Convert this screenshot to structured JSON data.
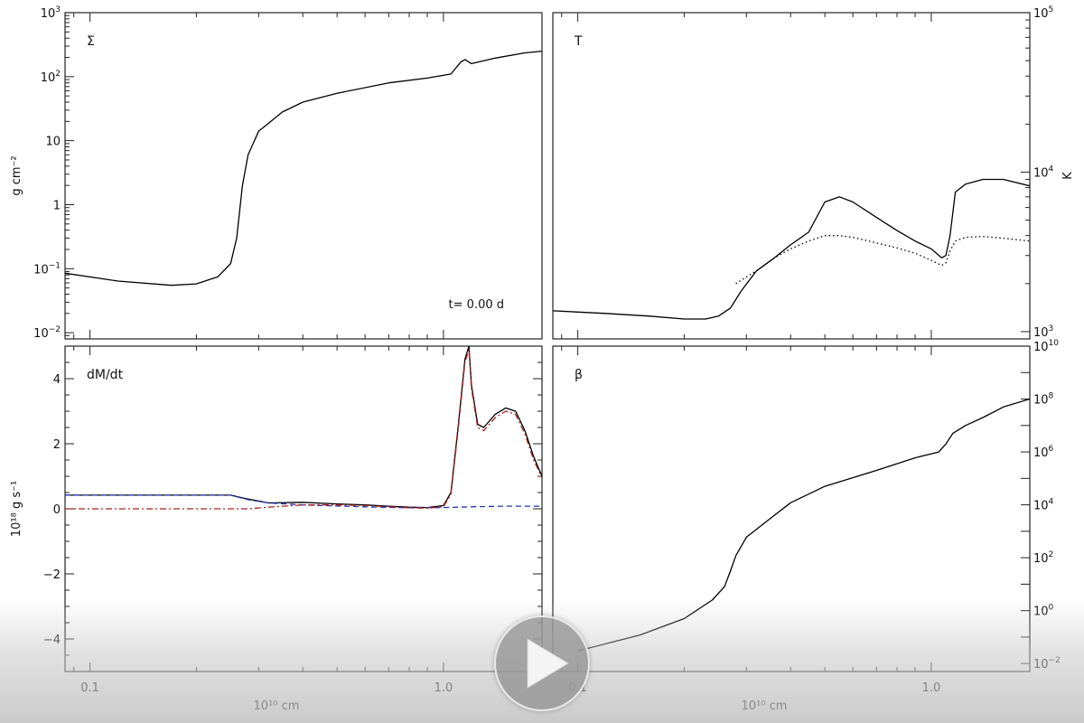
{
  "player": {
    "play_icon": "play-icon",
    "overlay_color": "#bdbdbd"
  },
  "chart_data": [
    {
      "panel": "top-left",
      "type": "line",
      "title": "Σ",
      "ylabel": "g cm⁻²",
      "yscale": "log",
      "ylim": [
        0.008,
        1000
      ],
      "xscale": "log",
      "xlim": [
        0.085,
        1.9
      ],
      "x_ticklabels": [
        "0.1",
        "1.0"
      ],
      "y_ticklabels": [
        "10⁻²",
        "10⁻¹",
        "1",
        "10",
        "10²",
        "10³"
      ],
      "annotation": "t= 0.00 d",
      "series": [
        {
          "style": "solid",
          "color": "#000000",
          "x": [
            0.085,
            0.12,
            0.17,
            0.2,
            0.23,
            0.25,
            0.26,
            0.27,
            0.28,
            0.3,
            0.35,
            0.4,
            0.5,
            0.7,
            0.9,
            1.05,
            1.12,
            1.15,
            1.2,
            1.4,
            1.7,
            1.9
          ],
          "y": [
            0.085,
            0.064,
            0.055,
            0.058,
            0.075,
            0.12,
            0.3,
            2.0,
            6.0,
            14,
            28,
            40,
            55,
            80,
            95,
            110,
            170,
            185,
            160,
            195,
            235,
            250
          ]
        }
      ]
    },
    {
      "panel": "top-right",
      "type": "line",
      "title": "T",
      "ylabel": "K",
      "yscale": "log",
      "ylim": [
        900,
        100000
      ],
      "xscale": "log",
      "xlim": [
        0.085,
        1.9
      ],
      "x_ticklabels": [
        "0.1",
        "1.0"
      ],
      "y_ticklabels": [
        "10³",
        "10⁴",
        "10⁵"
      ],
      "series": [
        {
          "style": "solid",
          "color": "#000000",
          "x": [
            0.085,
            0.12,
            0.16,
            0.2,
            0.23,
            0.25,
            0.27,
            0.29,
            0.32,
            0.36,
            0.4,
            0.45,
            0.5,
            0.55,
            0.6,
            0.7,
            0.8,
            0.9,
            1.0,
            1.07,
            1.1,
            1.13,
            1.17,
            1.25,
            1.4,
            1.6,
            1.9
          ],
          "y": [
            1350,
            1300,
            1250,
            1200,
            1200,
            1250,
            1400,
            1800,
            2400,
            2900,
            3500,
            4200,
            6500,
            7000,
            6500,
            5200,
            4300,
            3700,
            3300,
            2900,
            3000,
            4000,
            7500,
            8400,
            9000,
            9000,
            8200
          ]
        },
        {
          "style": "dotted",
          "color": "#000000",
          "x": [
            0.28,
            0.32,
            0.36,
            0.4,
            0.45,
            0.5,
            0.55,
            0.6,
            0.7,
            0.8,
            0.9,
            1.0,
            1.07,
            1.1,
            1.13,
            1.17,
            1.25,
            1.4,
            1.6,
            1.9
          ],
          "y": [
            2000,
            2400,
            2900,
            3300,
            3700,
            4000,
            4000,
            3900,
            3600,
            3350,
            3100,
            2800,
            2600,
            2700,
            3200,
            3700,
            3900,
            3950,
            3850,
            3700
          ]
        }
      ]
    },
    {
      "panel": "bottom-left",
      "type": "line",
      "title": "dM/dt",
      "ylabel": "10¹⁸ g s⁻¹",
      "xlabel": "10¹⁰ cm",
      "yscale": "linear",
      "ylim": [
        -5,
        5
      ],
      "xscale": "log",
      "xlim": [
        0.085,
        1.9
      ],
      "x_ticklabels": [
        "0.1",
        "1.0"
      ],
      "y_ticklabels": [
        "−4",
        "−2",
        "0",
        "2",
        "4"
      ],
      "series": [
        {
          "style": "solid",
          "color": "#000000",
          "x": [
            0.085,
            0.2,
            0.25,
            0.28,
            0.32,
            0.4,
            0.5,
            0.6,
            0.7,
            0.8,
            0.9,
            1.0,
            1.05,
            1.1,
            1.15,
            1.18,
            1.2,
            1.25,
            1.3,
            1.4,
            1.5,
            1.6,
            1.7,
            1.8,
            1.9
          ],
          "y": [
            0.42,
            0.42,
            0.42,
            0.3,
            0.18,
            0.2,
            0.15,
            0.12,
            0.08,
            0.05,
            0.04,
            0.1,
            0.5,
            2.5,
            4.6,
            5.0,
            3.8,
            2.6,
            2.5,
            2.9,
            3.1,
            3.0,
            2.4,
            1.6,
            1.0
          ]
        },
        {
          "style": "dashed",
          "color": "#2233bb",
          "x": [
            0.085,
            0.2,
            0.25,
            0.28,
            0.32,
            0.4,
            0.6,
            0.8,
            1.0,
            1.2,
            1.5,
            1.9
          ],
          "y": [
            0.42,
            0.42,
            0.42,
            0.28,
            0.18,
            0.12,
            0.06,
            0.03,
            0.04,
            0.06,
            0.08,
            0.08
          ]
        },
        {
          "style": "dash-dot",
          "color": "#aa2222",
          "x": [
            0.085,
            0.2,
            0.25,
            0.28,
            0.32,
            0.4,
            0.5,
            0.6,
            0.7,
            0.8,
            0.9,
            1.0,
            1.05,
            1.1,
            1.15,
            1.18,
            1.2,
            1.25,
            1.3,
            1.4,
            1.5,
            1.6,
            1.7,
            1.8,
            1.9
          ],
          "y": [
            0.0,
            0.0,
            0.0,
            0.0,
            0.05,
            0.12,
            0.12,
            0.1,
            0.06,
            0.03,
            0.02,
            0.06,
            0.45,
            2.4,
            4.5,
            4.9,
            3.7,
            2.5,
            2.4,
            2.8,
            3.0,
            2.9,
            2.3,
            1.5,
            0.95
          ]
        }
      ]
    },
    {
      "panel": "bottom-right",
      "type": "line",
      "title": "β",
      "xlabel": "10¹⁰ cm",
      "yscale": "log",
      "ylim": [
        0.005,
        10000000000.0
      ],
      "xscale": "log",
      "xlim": [
        0.085,
        1.9
      ],
      "x_ticklabels": [
        "0.1",
        "1.0"
      ],
      "y_ticklabels": [
        "10⁻²",
        "10⁰",
        "10²",
        "10⁴",
        "10⁶",
        "10⁸",
        "10¹⁰"
      ],
      "series": [
        {
          "style": "solid",
          "color": "#000000",
          "x": [
            0.1,
            0.15,
            0.2,
            0.24,
            0.26,
            0.27,
            0.28,
            0.3,
            0.35,
            0.4,
            0.5,
            0.7,
            0.9,
            1.05,
            1.1,
            1.15,
            1.25,
            1.4,
            1.6,
            1.9
          ],
          "y": [
            0.03,
            0.12,
            0.5,
            2.5,
            8,
            30,
            120,
            600,
            3000,
            12000,
            50000,
            200000,
            600000,
            1000000,
            2000000,
            5000000,
            10000000,
            20000000,
            50000000,
            100000000
          ]
        }
      ]
    }
  ]
}
